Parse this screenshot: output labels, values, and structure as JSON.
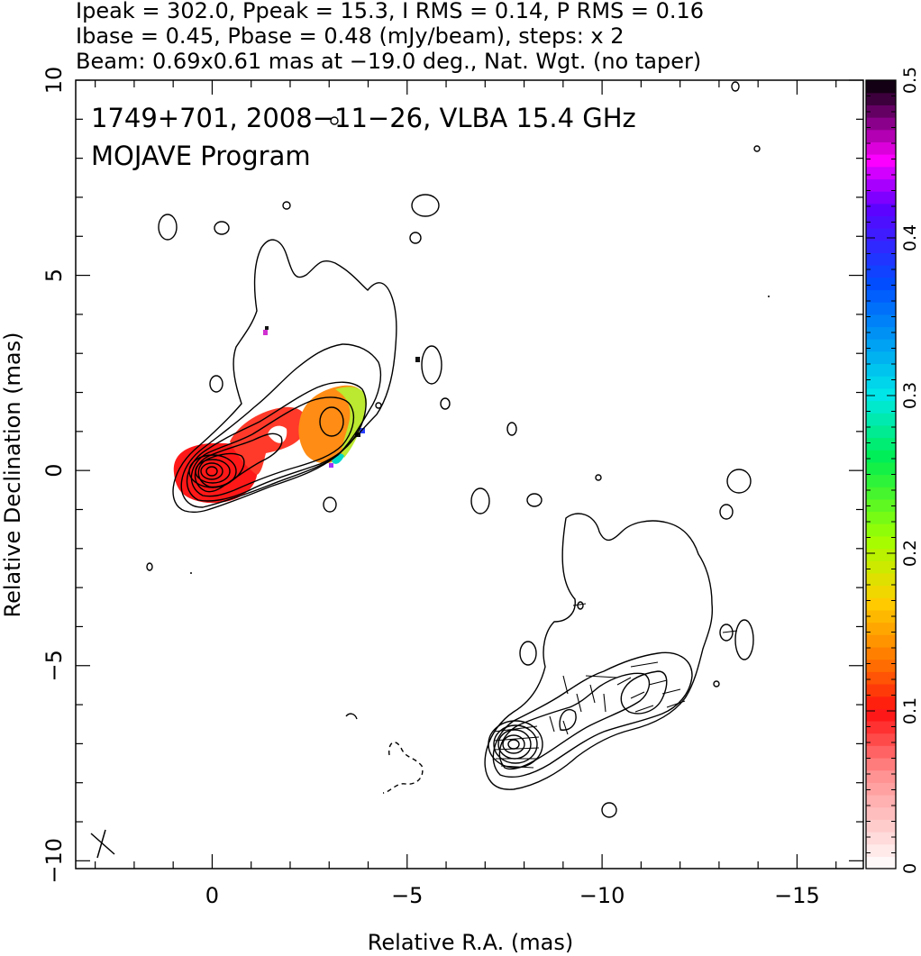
{
  "header": {
    "line1": "Ipeak = 302.0, Ppeak = 15.3, I RMS = 0.14, P RMS = 0.16",
    "line2": "Ibase = 0.45, Pbase = 0.48 (mJy/beam), steps: x 2",
    "line3": "Beam: 0.69x0.61 mas at −19.0 deg., Nat. Wgt. (no taper)"
  },
  "annotations": {
    "source": "1749+701, 2008−11−26, VLBA 15.4 GHz",
    "program": "MOJAVE Program"
  },
  "chart_data": {
    "type": "heatmap",
    "xlabel": "Relative R.A. (mas)",
    "ylabel": "Relative Declination (mas)",
    "xlim": [
      3.5,
      -16.7
    ],
    "ylim": [
      -10.2,
      10
    ],
    "xticks": [
      0,
      -5,
      -10,
      -15
    ],
    "xtick_labels": [
      "0",
      "−5",
      "−10",
      "−15"
    ],
    "yticks": [
      -10,
      -5,
      0,
      5,
      10
    ],
    "ytick_labels": [
      "−10",
      "−5",
      "0",
      "5",
      "10"
    ],
    "colorbar": {
      "vmin": 0,
      "vmax": 0.5,
      "ticks": [
        0,
        0.1,
        0.2,
        0.3,
        0.4,
        0.5
      ],
      "tick_labels": [
        "0",
        "0.1",
        "0.2",
        "0.3",
        "0.4",
        "0.5"
      ],
      "stops": [
        {
          "v": 0.0,
          "color": "#ffffff"
        },
        {
          "v": 0.06,
          "color": "#ff9090"
        },
        {
          "v": 0.1,
          "color": "#ff1010"
        },
        {
          "v": 0.13,
          "color": "#ff7000"
        },
        {
          "v": 0.17,
          "color": "#ffd000"
        },
        {
          "v": 0.21,
          "color": "#a0ff00"
        },
        {
          "v": 0.26,
          "color": "#00ee50"
        },
        {
          "v": 0.3,
          "color": "#00e8e8"
        },
        {
          "v": 0.37,
          "color": "#0050ff"
        },
        {
          "v": 0.42,
          "color": "#6000ff"
        },
        {
          "v": 0.45,
          "color": "#ff00ff"
        },
        {
          "v": 0.5,
          "color": "#000000"
        }
      ]
    },
    "fractional_polarization_patches": [
      {
        "x": 0.0,
        "y": 0.1,
        "value": 0.1
      },
      {
        "x": -1.6,
        "y": 0.9,
        "value": 0.1
      },
      {
        "x": -3.0,
        "y": 1.3,
        "value": 0.15
      },
      {
        "x": -3.6,
        "y": 0.7,
        "value": 0.22
      },
      {
        "x": -3.9,
        "y": 0.9,
        "value": 0.35
      }
    ],
    "core_position": {
      "x": 0,
      "y": 0
    },
    "beam": {
      "major_mas": 0.69,
      "minor_mas": 0.61,
      "pa_deg": -19.0
    },
    "grid": false,
    "legend": "colorbar right"
  }
}
